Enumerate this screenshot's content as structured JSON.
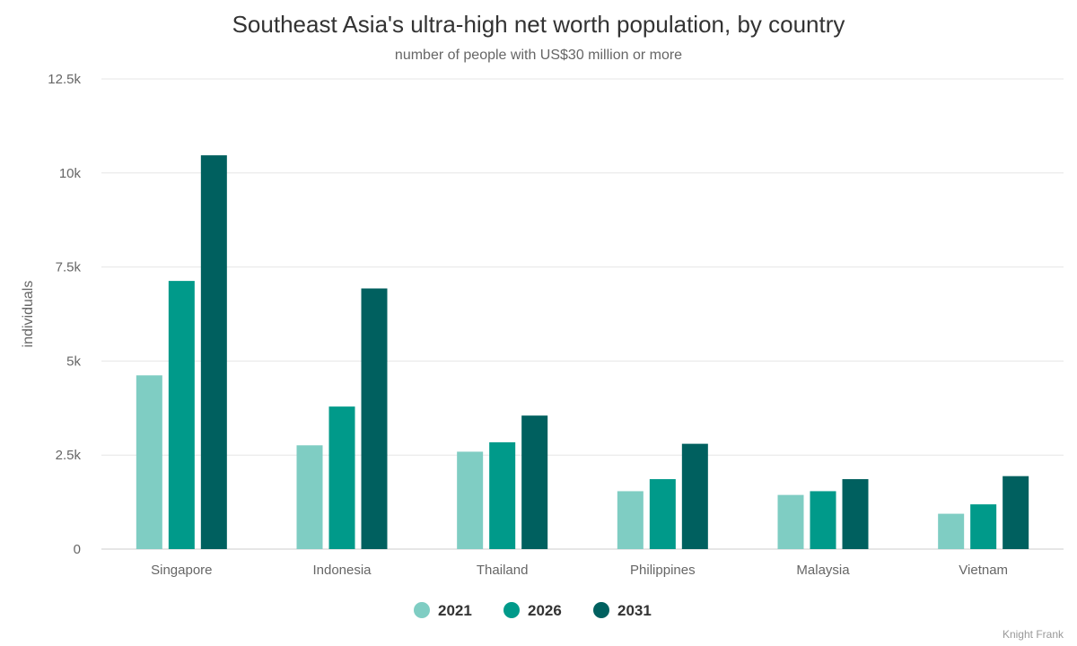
{
  "chart_data": {
    "type": "bar",
    "title": "Southeast Asia's ultra-high net worth population, by country",
    "subtitle": "number of people with US$30 million or more",
    "ylabel": "individuals",
    "xlabel": "",
    "ylim": [
      0,
      12500
    ],
    "yticks": [
      0,
      2500,
      5000,
      7500,
      10000,
      12500
    ],
    "ytick_labels": [
      "0",
      "2.5k",
      "5k",
      "7.5k",
      "10k",
      "12.5k"
    ],
    "grid": true,
    "legend_position": "bottom-center",
    "categories": [
      "Singapore",
      "Indonesia",
      "Thailand",
      "Philippines",
      "Malaysia",
      "Vietnam"
    ],
    "series": [
      {
        "name": "2021",
        "color": "#7fcdc3",
        "values": [
          4620,
          2760,
          2590,
          1540,
          1440,
          940
        ]
      },
      {
        "name": "2026",
        "color": "#009a8a",
        "values": [
          7130,
          3790,
          2840,
          1860,
          1540,
          1190
        ]
      },
      {
        "name": "2031",
        "color": "#00605f",
        "values": [
          10470,
          6930,
          3550,
          2800,
          1860,
          1940
        ]
      }
    ],
    "credit": "Knight Frank"
  }
}
